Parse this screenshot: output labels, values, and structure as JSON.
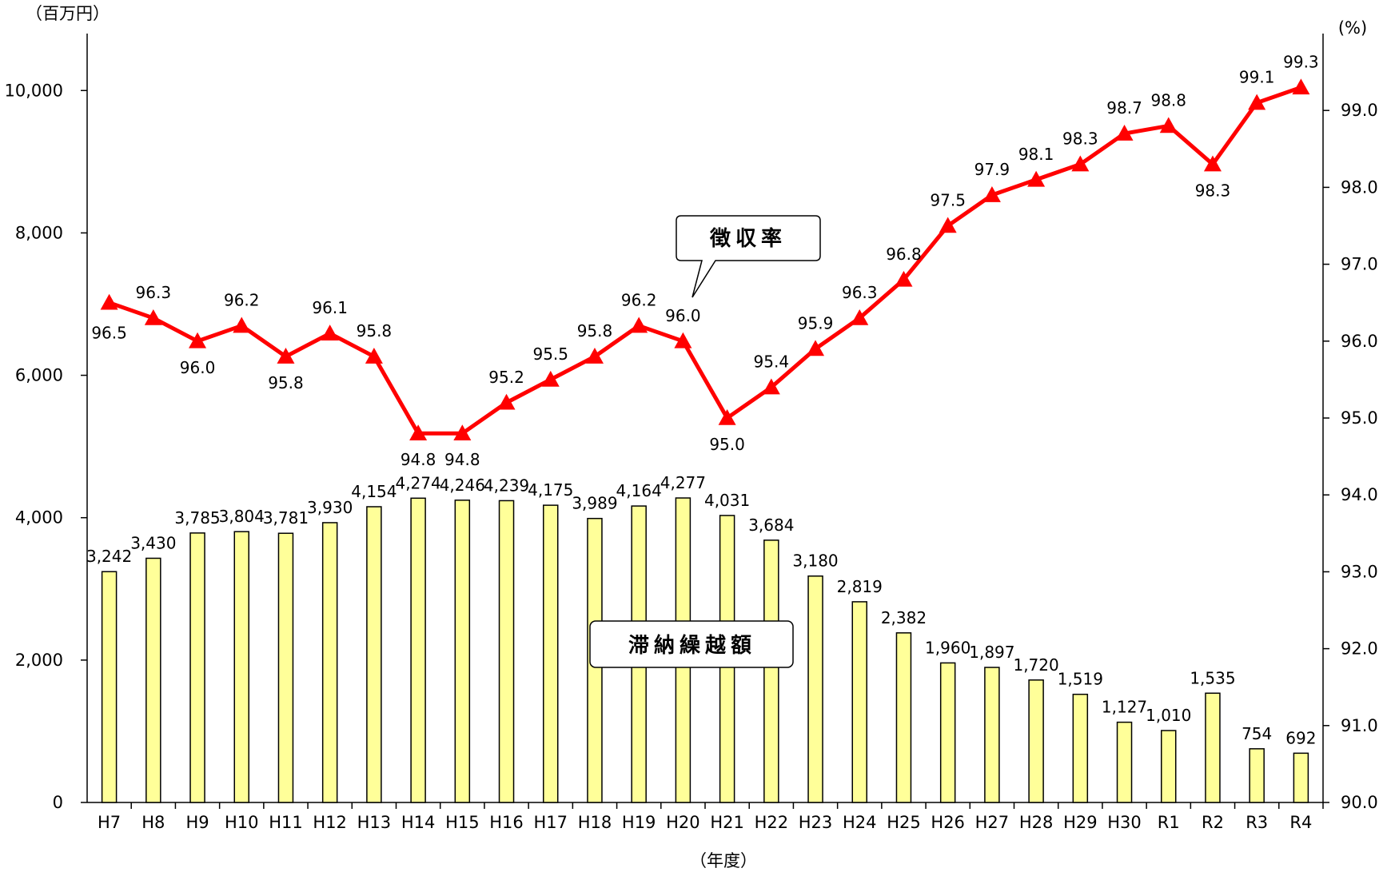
{
  "chart_data": {
    "type": "bar+line",
    "categories": [
      "H7",
      "H8",
      "H9",
      "H10",
      "H11",
      "H12",
      "H13",
      "H14",
      "H15",
      "H16",
      "H17",
      "H18",
      "H19",
      "H20",
      "H21",
      "H22",
      "H23",
      "H24",
      "H25",
      "H26",
      "H27",
      "H28",
      "H29",
      "H30",
      "R1",
      "R2",
      "R3",
      "R4"
    ],
    "series": [
      {
        "name": "滞納繰越額",
        "type": "bar",
        "axis": "left",
        "color": "#FFFF99",
        "values": [
          3242,
          3430,
          3785,
          3804,
          3781,
          3930,
          4154,
          4274,
          4246,
          4239,
          4175,
          3989,
          4164,
          4277,
          4031,
          3684,
          3180,
          2819,
          2382,
          1960,
          1897,
          1720,
          1519,
          1127,
          1010,
          1535,
          754,
          692
        ],
        "labels": [
          "3,242",
          "3,430",
          "3,785",
          "3,804",
          "3,781",
          "3,930",
          "4,154",
          "4,274",
          "4,246",
          "4,239",
          "4,175",
          "3,989",
          "4,164",
          "4,277",
          "4,031",
          "3,684",
          "3,180",
          "2,819",
          "2,382",
          "1,960",
          "1,897",
          "1,720",
          "1,519",
          "1,127",
          "1,010",
          "1,535",
          "754",
          "692"
        ]
      },
      {
        "name": "徴収率",
        "type": "line",
        "axis": "right",
        "color": "#FF0000",
        "values": [
          96.5,
          96.3,
          96.0,
          96.2,
          95.8,
          96.1,
          95.8,
          94.8,
          94.8,
          95.2,
          95.5,
          95.8,
          96.2,
          96.0,
          95.0,
          95.4,
          95.9,
          96.3,
          96.8,
          97.5,
          97.9,
          98.1,
          98.3,
          98.7,
          98.8,
          98.3,
          99.1,
          99.3
        ],
        "labels": [
          "96.5",
          "96.3",
          "96.0",
          "96.2",
          "95.8",
          "96.1",
          "95.8",
          "94.8",
          "94.8",
          "95.2",
          "95.5",
          "95.8",
          "96.2",
          "96.0",
          "95.0",
          "95.4",
          "95.9",
          "96.3",
          "96.8",
          "97.5",
          "97.9",
          "98.1",
          "98.3",
          "98.7",
          "98.8",
          "98.3",
          "99.1",
          "99.3"
        ]
      }
    ],
    "y_left": {
      "unit_label": "（百万円）",
      "range": [
        0,
        10800
      ],
      "ticks": [
        0,
        2000,
        4000,
        6000,
        8000,
        10000
      ],
      "tick_labels": [
        "0",
        "2,000",
        "4,000",
        "6,000",
        "8,000",
        "10,000"
      ]
    },
    "y_right": {
      "unit_label": "(%)",
      "range": [
        90.0,
        100.0
      ],
      "ticks": [
        90.0,
        91.0,
        92.0,
        93.0,
        94.0,
        95.0,
        96.0,
        97.0,
        98.0,
        99.0
      ],
      "tick_labels": [
        "90.0",
        "91.0",
        "92.0",
        "93.0",
        "94.0",
        "95.0",
        "96.0",
        "97.0",
        "98.0",
        "99.0"
      ]
    },
    "xlabel": "（年度）",
    "grid": false,
    "legend": "callouts"
  }
}
